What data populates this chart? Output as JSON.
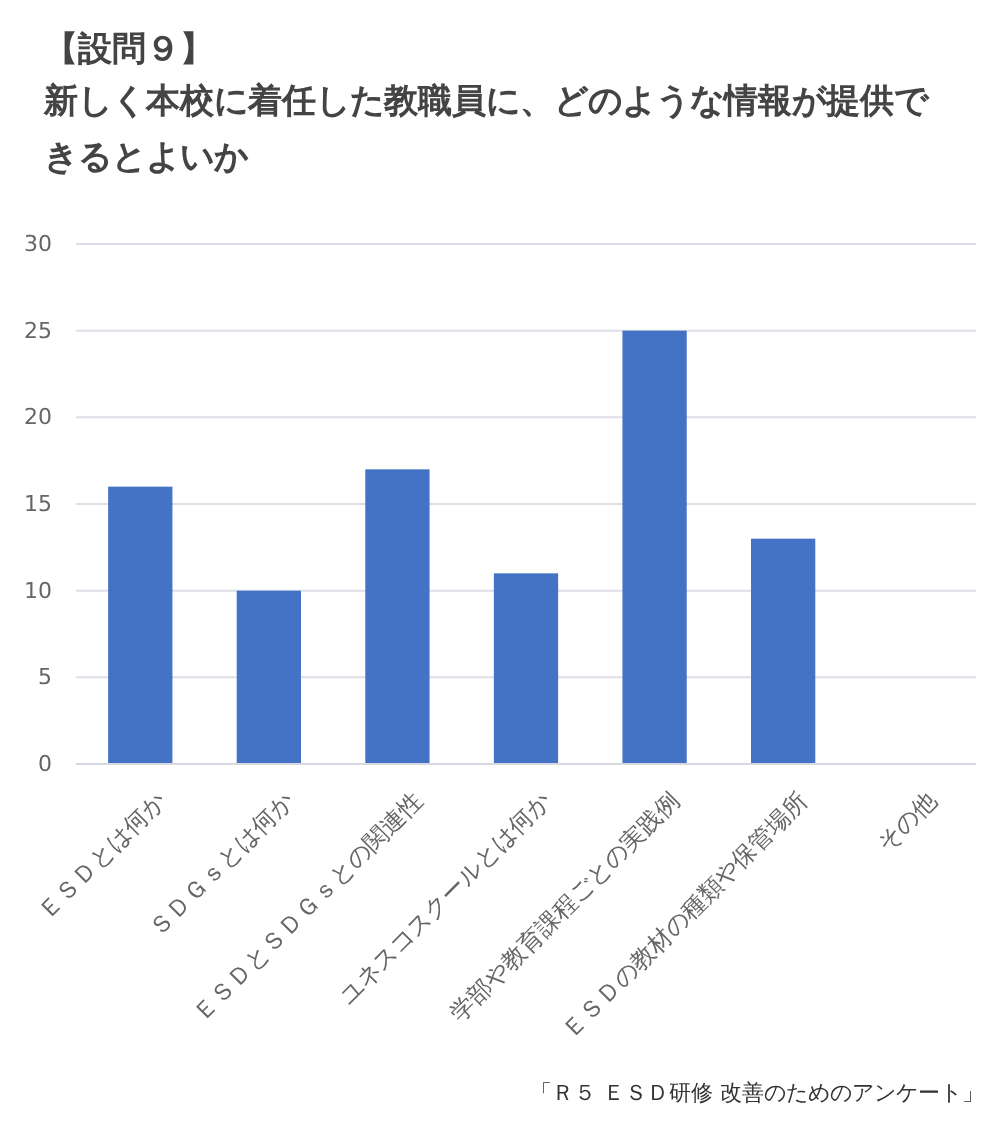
{
  "chart_data": {
    "type": "bar",
    "title": "【設問９】",
    "subtitle": "新しく本校に着任した教職員に、どのような情報が提供できるとよいか",
    "categories": [
      "ＥＳＤとは何か",
      "ＳＤＧｓとは何か",
      "ＥＳＤとＳＤＧｓとの関連性",
      "ユネスコスクールとは何か",
      "学部や教育課程ごとの実践例",
      "ＥＳＤの教材の種類や保管場所",
      "その他"
    ],
    "values": [
      16,
      10,
      17,
      11,
      25,
      13,
      0
    ],
    "color": "#4472c4",
    "ylim": [
      0,
      30
    ],
    "yticks": [
      0,
      5,
      10,
      15,
      20,
      25,
      30
    ],
    "grid": "y",
    "annotations": [
      "「Ｒ５ ＥＳＤ研修 改善のためのアンケート」"
    ]
  }
}
